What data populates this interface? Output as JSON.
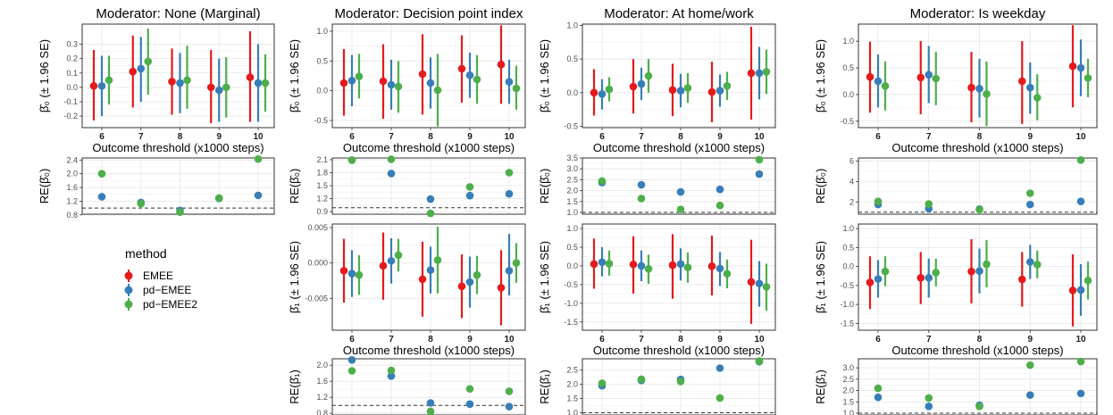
{
  "colors": {
    "EMEE": "#E41A1C",
    "pd-EMEE": "#377EB8",
    "pd-EMEE2": "#4DAF4A"
  },
  "legend": {
    "title": "method",
    "items": [
      {
        "label": "EMEE",
        "color": "#E41A1C"
      },
      {
        "label": "pd−EMEE",
        "color": "#377EB8"
      },
      {
        "label": "pd−EMEE2",
        "color": "#4DAF4A"
      }
    ]
  },
  "labels": {
    "xlabel": "Outcome threshold (x1000 steps)",
    "ylabel_b0": "β̂₀ (± 1.96 SE)",
    "ylabel_b1": "β̂₁ (± 1.96 SE)",
    "ylabel_re0": "RE(β̂₀)",
    "ylabel_re1": "RE(β̂₁)"
  },
  "columns": [
    {
      "title": "Moderator: None (Marginal)"
    },
    {
      "title": "Moderator: Decision point index"
    },
    {
      "title": "Moderator: At home/work"
    },
    {
      "title": "Moderator: Is weekday"
    }
  ],
  "chart_data": [
    {
      "type": "scatter",
      "panel": "beta0",
      "column": 0,
      "x": [
        6,
        7,
        8,
        9,
        10
      ],
      "xticks": [
        "6",
        "7",
        "8",
        "9",
        "10"
      ],
      "ylim": [
        -0.28,
        0.44
      ],
      "yticks": [
        -0.2,
        -0.1,
        0.0,
        0.1,
        0.2,
        0.3
      ],
      "yticklabels": [
        "-0.2",
        "-0.1",
        "0.0",
        "0.1",
        "0.2",
        "0.3"
      ],
      "series": [
        {
          "name": "EMEE",
          "est": [
            0.01,
            0.11,
            0.04,
            0.0,
            0.07
          ],
          "lo": [
            -0.23,
            -0.14,
            -0.19,
            -0.25,
            -0.24
          ],
          "hi": [
            0.26,
            0.36,
            0.27,
            0.26,
            0.39
          ]
        },
        {
          "name": "pd-EMEE",
          "est": [
            0.01,
            0.13,
            0.03,
            -0.02,
            0.03
          ],
          "lo": [
            -0.2,
            -0.1,
            -0.18,
            -0.24,
            -0.24
          ],
          "hi": [
            0.22,
            0.35,
            0.24,
            0.2,
            0.3
          ]
        },
        {
          "name": "pd-EMEE2",
          "est": [
            0.05,
            0.18,
            0.05,
            0.0,
            0.03
          ],
          "lo": [
            -0.12,
            -0.05,
            -0.15,
            -0.21,
            -0.17
          ],
          "hi": [
            0.22,
            0.41,
            0.29,
            0.21,
            0.23
          ]
        }
      ]
    },
    {
      "type": "scatter",
      "panel": "re_beta0",
      "column": 0,
      "x": [
        6,
        7,
        8,
        9,
        10
      ],
      "ylim": [
        0.82,
        2.46
      ],
      "ref": 1.0,
      "yticks": [
        0.8,
        1.2,
        1.6,
        2.0,
        2.4
      ],
      "yticklabels": [
        "0.8",
        "1.2",
        "1.6",
        "2.0",
        "2.4"
      ],
      "series": [
        {
          "name": "pd-EMEE",
          "values": [
            1.33,
            1.16,
            0.93,
            1.28,
            1.37
          ]
        },
        {
          "name": "pd-EMEE2",
          "values": [
            2.0,
            1.13,
            0.88,
            1.29,
            2.43
          ]
        }
      ]
    },
    {
      "type": "scatter",
      "panel": "beta0",
      "column": 1,
      "x": [
        6,
        7,
        8,
        9,
        10
      ],
      "xticks": [
        "6",
        "7",
        "8",
        "9",
        "10"
      ],
      "ylim": [
        -0.62,
        1.12
      ],
      "yticks": [
        -0.5,
        0.0,
        0.5,
        1.0
      ],
      "yticklabels": [
        "-0.5",
        "0.0",
        "0.5",
        "1.0"
      ],
      "series": [
        {
          "name": "EMEE",
          "est": [
            0.13,
            0.16,
            0.28,
            0.37,
            0.44
          ],
          "lo": [
            -0.42,
            -0.47,
            -0.4,
            -0.2,
            -0.22
          ],
          "hi": [
            0.7,
            0.78,
            0.95,
            0.93,
            1.1
          ]
        },
        {
          "name": "pd-EMEE",
          "est": [
            0.17,
            0.1,
            0.13,
            0.26,
            0.15
          ],
          "lo": [
            -0.26,
            -0.32,
            -0.3,
            -0.12,
            -0.22
          ],
          "hi": [
            0.6,
            0.52,
            0.56,
            0.64,
            0.52
          ]
        },
        {
          "name": "pd-EMEE2",
          "est": [
            0.24,
            0.07,
            0.01,
            0.19,
            0.04
          ],
          "lo": [
            -0.13,
            -0.37,
            -0.6,
            -0.22,
            -0.32
          ],
          "hi": [
            0.62,
            0.5,
            0.62,
            0.6,
            0.42
          ]
        }
      ]
    },
    {
      "type": "scatter",
      "panel": "re_beta0",
      "column": 1,
      "x": [
        6,
        7,
        8,
        9,
        10
      ],
      "ylim": [
        0.84,
        2.14
      ],
      "ref": 0.99,
      "yticks": [
        0.9,
        1.2,
        1.5,
        1.8,
        2.1
      ],
      "yticklabels": [
        "0.9",
        "1.2",
        "1.5",
        "1.8",
        "2.1"
      ],
      "series": [
        {
          "name": "pd-EMEE",
          "values": [
            2.09,
            1.78,
            1.19,
            1.27,
            1.31
          ]
        },
        {
          "name": "pd-EMEE2",
          "values": [
            2.09,
            2.11,
            0.86,
            1.47,
            1.8
          ]
        }
      ]
    },
    {
      "type": "scatter",
      "panel": "beta1",
      "column": 1,
      "x": [
        6,
        7,
        8,
        9,
        10
      ],
      "xticks": [
        "6",
        "7",
        "8",
        "9",
        "10"
      ],
      "ylim": [
        -0.0095,
        0.0055
      ],
      "yticks": [
        -0.005,
        0.0,
        0.005
      ],
      "yticklabels": [
        "-0.005",
        "0.000",
        "0.005"
      ],
      "series": [
        {
          "name": "EMEE",
          "est": [
            -0.0011,
            -0.0004,
            -0.0023,
            -0.0033,
            -0.0035
          ],
          "lo": [
            -0.0056,
            -0.0052,
            -0.0076,
            -0.0078,
            -0.0088
          ],
          "hi": [
            0.0034,
            0.0043,
            0.003,
            0.0012,
            0.0018
          ]
        },
        {
          "name": "pd-EMEE",
          "est": [
            -0.0015,
            0.0003,
            -0.001,
            -0.0027,
            -0.0011
          ],
          "lo": [
            -0.0048,
            -0.0029,
            -0.0043,
            -0.0063,
            -0.0046
          ],
          "hi": [
            0.0018,
            0.0035,
            0.0023,
            0.0009,
            0.0041
          ]
        },
        {
          "name": "pd-EMEE2",
          "est": [
            -0.0017,
            0.0011,
            0.0004,
            -0.0017,
            0.0
          ],
          "lo": [
            -0.0045,
            -0.0012,
            -0.0043,
            -0.0044,
            -0.0028
          ],
          "hi": [
            0.0011,
            0.0034,
            0.0051,
            0.001,
            0.0028
          ]
        }
      ]
    },
    {
      "type": "scatter",
      "panel": "re_beta1",
      "column": 1,
      "x": [
        6,
        7,
        8,
        9,
        10
      ],
      "ylim": [
        0.76,
        2.16
      ],
      "ref": 1.0,
      "yticks": [
        0.8,
        1.2,
        1.6,
        2.0
      ],
      "yticklabels": [
        "0.8",
        "1.2",
        "1.6",
        "2.0"
      ],
      "series": [
        {
          "name": "pd-EMEE",
          "values": [
            2.13,
            1.73,
            1.06,
            1.03,
            0.97
          ]
        },
        {
          "name": "pd-EMEE2",
          "values": [
            1.86,
            1.87,
            0.85,
            1.41,
            1.35
          ]
        }
      ]
    },
    {
      "type": "scatter",
      "panel": "beta0",
      "column": 2,
      "x": [
        6,
        7,
        8,
        9,
        10
      ],
      "xticks": [
        "6",
        "7",
        "8",
        "9",
        "10"
      ],
      "ylim": [
        -0.52,
        1.02
      ],
      "yticks": [
        -0.5,
        0.0,
        0.5,
        1.0
      ],
      "yticklabels": [
        "-0.5",
        "0.0",
        "0.5",
        "1.0"
      ],
      "series": [
        {
          "name": "EMEE",
          "est": [
            0.0,
            0.09,
            0.04,
            0.01,
            0.29
          ],
          "lo": [
            -0.34,
            -0.31,
            -0.35,
            -0.44,
            -0.4
          ],
          "hi": [
            0.35,
            0.5,
            0.43,
            0.46,
            0.98
          ]
        },
        {
          "name": "pd-EMEE",
          "est": [
            -0.02,
            0.13,
            0.03,
            0.03,
            0.29
          ],
          "lo": [
            -0.25,
            -0.11,
            -0.22,
            -0.21,
            -0.1
          ],
          "hi": [
            0.2,
            0.37,
            0.28,
            0.27,
            0.68
          ]
        },
        {
          "name": "pd-EMEE2",
          "est": [
            0.05,
            0.25,
            0.07,
            0.1,
            0.31
          ],
          "lo": [
            -0.13,
            0.0,
            -0.15,
            -0.11,
            -0.02
          ],
          "hi": [
            0.23,
            0.5,
            0.29,
            0.31,
            0.64
          ]
        }
      ]
    },
    {
      "type": "scatter",
      "panel": "re_beta0",
      "column": 2,
      "x": [
        6,
        7,
        8,
        9,
        10
      ],
      "ylim": [
        0.92,
        3.5
      ],
      "ref": 1.0,
      "yticks": [
        1.0,
        1.5,
        2.0,
        2.5,
        3.0,
        3.5
      ],
      "yticklabels": [
        "1.0",
        "1.5",
        "2.0",
        "2.5",
        "3.0",
        "3.5"
      ],
      "series": [
        {
          "name": "pd-EMEE",
          "values": [
            2.37,
            2.27,
            1.94,
            2.06,
            2.76
          ]
        },
        {
          "name": "pd-EMEE2",
          "values": [
            2.44,
            1.64,
            1.14,
            1.32,
            3.42
          ]
        }
      ]
    },
    {
      "type": "scatter",
      "panel": "beta1",
      "column": 2,
      "x": [
        6,
        7,
        8,
        9,
        10
      ],
      "xticks": [
        "6",
        "7",
        "8",
        "9",
        "10"
      ],
      "ylim": [
        -1.72,
        1.12
      ],
      "yticks": [
        -1.5,
        -1.0,
        -0.5,
        0.0,
        0.5,
        1.0
      ],
      "yticklabels": [
        "-1.5",
        "-1.0",
        "-0.5",
        "0.0",
        "0.5",
        "1.0"
      ],
      "series": [
        {
          "name": "EMEE",
          "est": [
            0.05,
            0.04,
            0.02,
            -0.01,
            -0.43
          ],
          "lo": [
            -0.61,
            -0.74,
            -0.88,
            -0.79,
            -1.55
          ],
          "hi": [
            0.73,
            0.79,
            0.85,
            0.81,
            0.7
          ]
        },
        {
          "name": "pd-EMEE",
          "est": [
            0.1,
            0.0,
            0.05,
            -0.07,
            -0.47
          ],
          "lo": [
            -0.28,
            -0.41,
            -0.39,
            -0.54,
            -1.09
          ],
          "hi": [
            0.5,
            0.41,
            0.47,
            0.37,
            0.13
          ]
        },
        {
          "name": "pd-EMEE2",
          "est": [
            0.06,
            -0.08,
            -0.04,
            -0.21,
            -0.56
          ],
          "lo": [
            -0.26,
            -0.48,
            -0.45,
            -0.6,
            -1.2
          ],
          "hi": [
            0.41,
            0.3,
            0.36,
            0.17,
            0.06
          ]
        }
      ]
    },
    {
      "type": "scatter",
      "panel": "re_beta1",
      "column": 2,
      "x": [
        6,
        7,
        8,
        9,
        10
      ],
      "ylim": [
        0.92,
        2.9
      ],
      "ref": 1.0,
      "yticks": [
        1.0,
        1.5,
        2.0,
        2.5
      ],
      "yticklabels": [
        "1.0",
        "1.5",
        "2.0",
        "2.5"
      ],
      "series": [
        {
          "name": "pd-EMEE",
          "values": [
            1.95,
            2.14,
            2.17,
            2.57,
            2.8
          ]
        },
        {
          "name": "pd-EMEE2",
          "values": [
            2.04,
            2.18,
            2.1,
            1.52,
            2.82
          ]
        }
      ]
    },
    {
      "type": "scatter",
      "panel": "beta0",
      "column": 3,
      "x": [
        6,
        7,
        8,
        9,
        10
      ],
      "xticks": [
        "6",
        "7",
        "8",
        "9",
        "10"
      ],
      "ylim": [
        -0.62,
        1.32
      ],
      "yticks": [
        -0.5,
        0.0,
        0.5,
        1.0
      ],
      "yticklabels": [
        "-0.5",
        "0.0",
        "0.5",
        "1.0"
      ],
      "series": [
        {
          "name": "EMEE",
          "est": [
            0.33,
            0.32,
            0.13,
            0.25,
            0.53
          ],
          "lo": [
            -0.34,
            -0.37,
            -0.52,
            -0.55,
            -0.24
          ],
          "hi": [
            0.99,
            1.0,
            0.8,
            1.0,
            1.3
          ]
        },
        {
          "name": "pd-EMEE",
          "est": [
            0.25,
            0.37,
            0.11,
            0.13,
            0.5
          ],
          "lo": [
            -0.24,
            -0.16,
            -0.43,
            -0.36,
            -0.03
          ],
          "hi": [
            0.75,
            0.91,
            0.67,
            0.6,
            1.03
          ]
        },
        {
          "name": "pd-EMEE2",
          "est": [
            0.16,
            0.3,
            0.01,
            -0.06,
            0.31
          ],
          "lo": [
            -0.3,
            -0.2,
            -0.59,
            -0.48,
            -0.05
          ],
          "hi": [
            0.62,
            0.8,
            0.62,
            0.38,
            0.67
          ]
        }
      ]
    },
    {
      "type": "scatter",
      "panel": "re_beta0",
      "column": 3,
      "x": [
        6,
        7,
        8,
        9,
        10
      ],
      "ylim": [
        0.8,
        6.3
      ],
      "ref": 1.0,
      "yticks": [
        2,
        4,
        6
      ],
      "yticklabels": [
        "2",
        "4",
        "6"
      ],
      "series": [
        {
          "name": "pd-EMEE",
          "values": [
            1.75,
            1.35,
            1.3,
            1.75,
            2.05
          ]
        },
        {
          "name": "pd-EMEE2",
          "values": [
            2.05,
            1.8,
            1.25,
            2.85,
            6.1
          ]
        }
      ]
    },
    {
      "type": "scatter",
      "panel": "beta1",
      "column": 3,
      "x": [
        6,
        7,
        8,
        9,
        10
      ],
      "xticks": [
        "6",
        "7",
        "8",
        "9",
        "10"
      ],
      "ylim": [
        -1.68,
        1.12
      ],
      "yticks": [
        -1.5,
        -1.0,
        -0.5,
        0.0,
        0.5,
        1.0
      ],
      "yticklabels": [
        "-1.5",
        "-1.0",
        "-0.5",
        "0.0",
        "0.5",
        "1.0"
      ],
      "series": [
        {
          "name": "EMEE",
          "est": [
            -0.42,
            -0.3,
            -0.13,
            -0.34,
            -0.63
          ],
          "lo": [
            -1.12,
            -0.99,
            -0.97,
            -1.06,
            -1.58
          ],
          "hi": [
            0.27,
            0.38,
            0.72,
            0.38,
            0.32
          ]
        },
        {
          "name": "pd-EMEE",
          "est": [
            -0.33,
            -0.3,
            -0.12,
            0.12,
            -0.62
          ],
          "lo": [
            -0.82,
            -0.82,
            -0.71,
            -0.33,
            -1.3
          ],
          "hi": [
            0.17,
            0.21,
            0.47,
            0.57,
            0.06
          ]
        },
        {
          "name": "pd-EMEE2",
          "est": [
            -0.13,
            -0.16,
            0.06,
            0.05,
            -0.37
          ],
          "lo": [
            -0.52,
            -0.52,
            -0.55,
            -0.31,
            -0.87
          ],
          "hi": [
            0.27,
            0.21,
            0.7,
            0.42,
            0.13
          ]
        }
      ]
    },
    {
      "type": "scatter",
      "panel": "re_beta1",
      "column": 3,
      "x": [
        6,
        7,
        8,
        9,
        10
      ],
      "ylim": [
        0.92,
        3.4
      ],
      "ref": 1.0,
      "yticks": [
        1.0,
        1.5,
        2.0,
        2.5,
        3.0
      ],
      "yticklabels": [
        "1.0",
        "1.5",
        "2.0",
        "2.5",
        "3.0"
      ],
      "series": [
        {
          "name": "pd-EMEE",
          "values": [
            1.7,
            1.3,
            1.35,
            1.8,
            1.87
          ]
        },
        {
          "name": "pd-EMEE2",
          "values": [
            2.1,
            1.67,
            1.3,
            3.12,
            3.28
          ]
        }
      ]
    }
  ]
}
